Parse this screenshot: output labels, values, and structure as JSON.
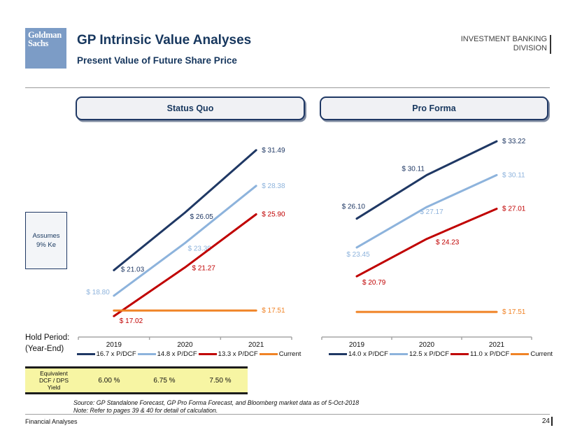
{
  "header": {
    "logo_line1": "Goldman",
    "logo_line2": "Sachs",
    "title": "GP Intrinsic Value Analyses",
    "subtitle": "Present Value of Future Share Price",
    "division_line1": "INVESTMENT BANKING",
    "division_line2": "DIVISION"
  },
  "annotations": {
    "assumes_line1": "Assumes",
    "assumes_line2": "9% Ke",
    "hold_period_line1": "Hold Period:",
    "hold_period_line2": "(Year-End)"
  },
  "yield_table": {
    "row_label_lines": [
      "Equivalent",
      "DCF / DPS",
      "Yield"
    ],
    "values": [
      "6.00 %",
      "6.75 %",
      "7.50 %"
    ]
  },
  "notes": {
    "source": "Source: GP Standalone Forecast, GP Pro Forma Forecast, and Bloomberg market data as of 5-Oct-2018",
    "note": "Note: Refer to pages 39 & 40 for detail of calculation."
  },
  "footer": {
    "left": "Financial Analyses",
    "page_number": "24"
  },
  "colors": {
    "navy": "#1F3864",
    "light_blue": "#8DB3DC",
    "red": "#C00000",
    "orange": "#F08326",
    "axis_gray": "#A6A6A6",
    "tick_label": "#111111"
  },
  "chart_data": [
    {
      "type": "line",
      "title": "Status Quo",
      "x": [
        "2019",
        "2020",
        "2021"
      ],
      "ylim": [
        15.2,
        33.0
      ],
      "grid": false,
      "legend_position": "bottom",
      "series": [
        {
          "name": "16.7 x P/DCF",
          "color": "navy",
          "values": [
            21.03,
            26.05,
            31.49
          ],
          "point_labels": [
            "$ 21.03",
            "$ 26.05",
            "$ 31.49"
          ]
        },
        {
          "name": "14.8 x P/DCF",
          "color": "light_blue",
          "values": [
            18.8,
            23.39,
            28.38
          ],
          "point_labels": [
            "$ 18.80",
            "$ 23.39",
            "$ 28.38"
          ]
        },
        {
          "name": "13.3 x P/DCF",
          "color": "red",
          "values": [
            17.02,
            21.27,
            25.9
          ],
          "point_labels": [
            "$ 17.02",
            "$ 21.27",
            "$ 25.90"
          ]
        },
        {
          "name": "Current",
          "color": "orange",
          "values": [
            17.51,
            17.51,
            17.51
          ],
          "point_labels": [
            "",
            "",
            "$ 17.51"
          ]
        }
      ]
    },
    {
      "type": "line",
      "title": "Pro Forma",
      "x": [
        "2019",
        "2020",
        "2021"
      ],
      "ylim": [
        15.2,
        34.0
      ],
      "grid": false,
      "legend_position": "bottom",
      "series": [
        {
          "name": "14.0 x P/DCF",
          "color": "navy",
          "values": [
            26.1,
            30.11,
            33.22
          ],
          "point_labels": [
            "$ 26.10",
            "$ 30.11",
            "$ 33.22"
          ]
        },
        {
          "name": "12.5 x P/DCF",
          "color": "light_blue",
          "values": [
            23.45,
            27.17,
            30.11
          ],
          "point_labels": [
            "$ 23.45",
            "$ 27.17",
            "$ 30.11"
          ]
        },
        {
          "name": "11.0 x P/DCF",
          "color": "red",
          "values": [
            20.79,
            24.23,
            27.01
          ],
          "point_labels": [
            "$ 20.79",
            "$ 24.23",
            "$ 27.01"
          ]
        },
        {
          "name": "Current",
          "color": "orange",
          "values": [
            17.51,
            17.51,
            17.51
          ],
          "point_labels": [
            "",
            "",
            "$ 17.51"
          ]
        }
      ]
    }
  ]
}
